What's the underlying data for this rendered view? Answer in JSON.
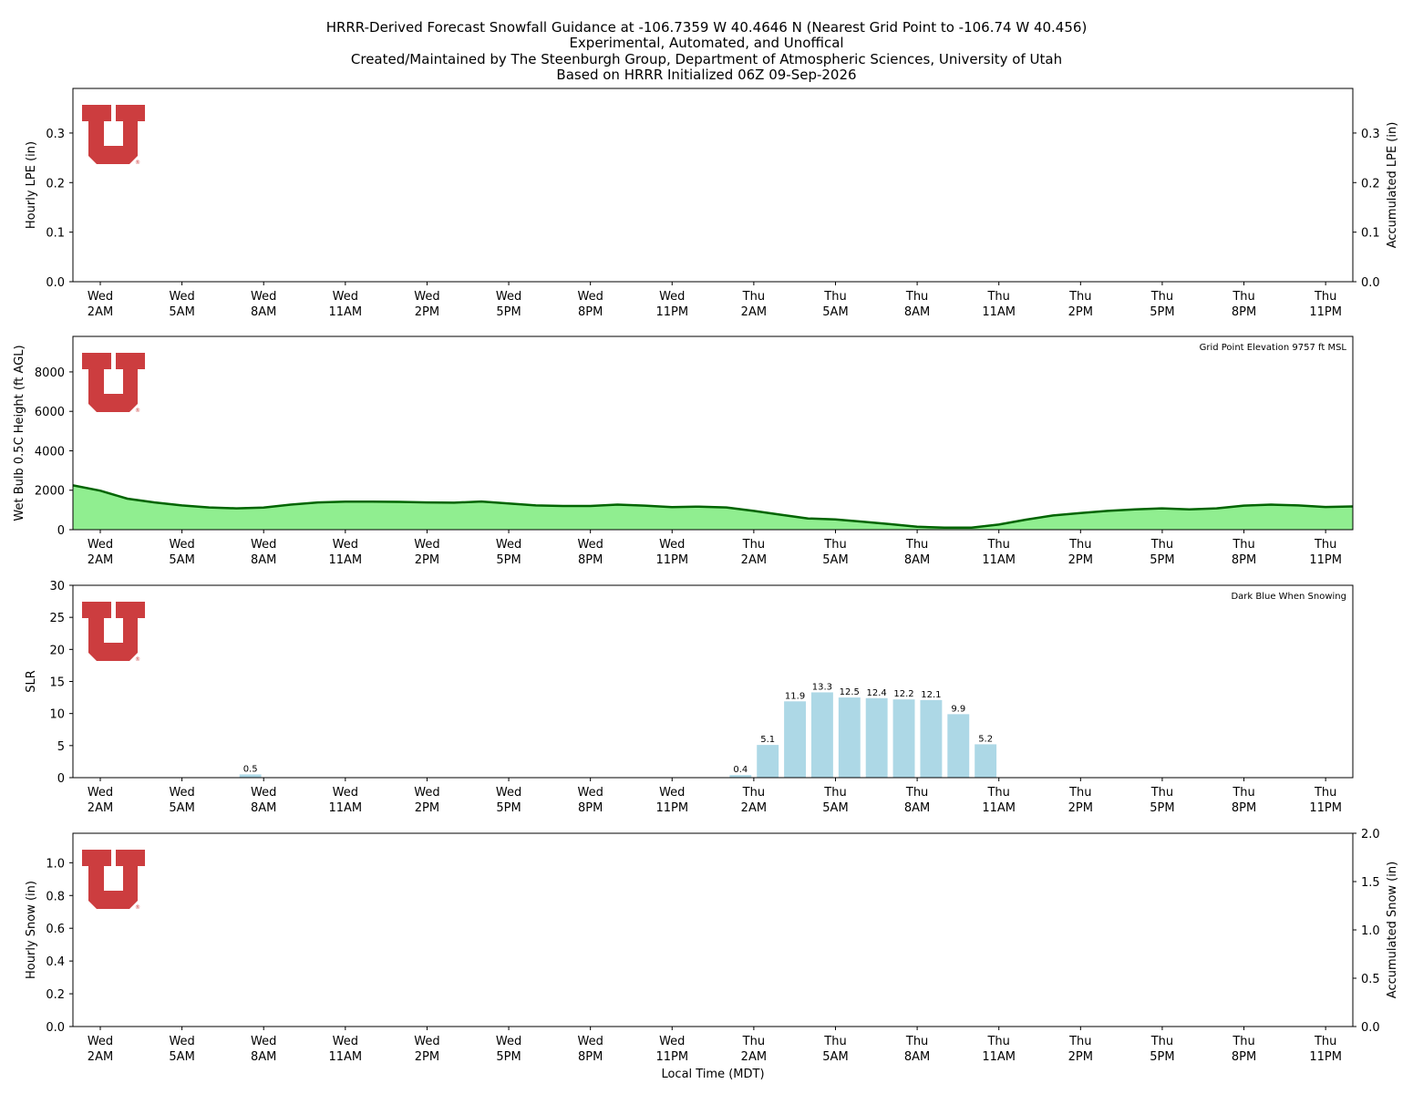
{
  "header": {
    "title_lines": [
      "HRRR-Derived Forecast Snowfall Guidance at -106.7359 W 40.4646 N (Nearest Grid Point to -106.74 W 40.456)",
      "Experimental, Automated, and Unoffical",
      "Created/Maintained by The Steenburgh Group, Department of Atmospheric Sciences, University of Utah",
      "Based on HRRR Initialized 06Z 09-Sep-2026"
    ]
  },
  "logo": {
    "letter": "U",
    "mark": "®",
    "color": "#cc3d3f"
  },
  "time_axis": {
    "label": "Local Time (MDT)",
    "ticks": [
      [
        "Wed",
        "2AM"
      ],
      [
        "Wed",
        "5AM"
      ],
      [
        "Wed",
        "8AM"
      ],
      [
        "Wed",
        "11AM"
      ],
      [
        "Wed",
        "2PM"
      ],
      [
        "Wed",
        "5PM"
      ],
      [
        "Wed",
        "8PM"
      ],
      [
        "Wed",
        "11PM"
      ],
      [
        "Thu",
        "2AM"
      ],
      [
        "Thu",
        "5AM"
      ],
      [
        "Thu",
        "8AM"
      ],
      [
        "Thu",
        "11AM"
      ],
      [
        "Thu",
        "2PM"
      ],
      [
        "Thu",
        "5PM"
      ],
      [
        "Thu",
        "8PM"
      ],
      [
        "Thu",
        "11PM"
      ]
    ]
  },
  "chart_data": [
    {
      "type": "bar",
      "ylabel": "Hourly LPE (in)",
      "y2label": "Accumulated LPE (in)",
      "ylim": [
        0,
        0.39
      ],
      "y2lim": [
        0,
        0.39
      ],
      "yticks": [
        "0.0",
        "0.1",
        "0.2",
        "0.3"
      ],
      "y2ticks": [
        "0.0",
        "0.1",
        "0.2",
        "0.3"
      ],
      "values": []
    },
    {
      "type": "area",
      "ylabel": "Wet Bulb 0.5C Height (ft AGL)",
      "annotation": "Grid Point Elevation 9757 ft MSL",
      "ylim": [
        0,
        9800
      ],
      "yticks": [
        "0",
        "2000",
        "4000",
        "6000",
        "8000"
      ],
      "fill_color": "#90ee90",
      "line_color": "#006400",
      "x_hours_from_wed_1am": [
        0,
        1,
        2,
        3,
        4,
        5,
        6,
        7,
        8,
        9,
        10,
        11,
        12,
        13,
        14,
        15,
        16,
        17,
        18,
        19,
        20,
        21,
        22,
        23,
        24,
        25,
        26,
        27,
        28,
        29,
        30,
        31,
        32,
        33,
        34,
        35,
        36,
        37,
        38,
        39,
        40,
        41,
        42,
        43,
        44,
        45,
        46,
        47
      ],
      "values": [
        2250,
        1980,
        1570,
        1380,
        1230,
        1130,
        1080,
        1120,
        1270,
        1380,
        1420,
        1420,
        1410,
        1380,
        1370,
        1430,
        1330,
        1230,
        1200,
        1200,
        1270,
        1220,
        1140,
        1170,
        1130,
        950,
        760,
        570,
        520,
        400,
        280,
        150,
        100,
        100,
        260,
        510,
        720,
        840,
        950,
        1030,
        1080,
        1030,
        1080,
        1220,
        1270,
        1230,
        1150,
        1180
      ]
    },
    {
      "type": "bar",
      "ylabel": "SLR",
      "annotation": "Dark Blue When Snowing",
      "ylim": [
        0,
        30
      ],
      "yticks": [
        "0",
        "5",
        "10",
        "15",
        "20",
        "25",
        "30"
      ],
      "bar_color": "#add8e6",
      "snowing_color": "#00008b",
      "bars": [
        {
          "hour": 6,
          "value": 0.5,
          "label": "0.5"
        },
        {
          "hour": 24,
          "value": 0.4,
          "label": "0.4"
        },
        {
          "hour": 25,
          "value": 5.1,
          "label": "5.1"
        },
        {
          "hour": 26,
          "value": 11.9,
          "label": "11.9"
        },
        {
          "hour": 27,
          "value": 13.3,
          "label": "13.3"
        },
        {
          "hour": 28,
          "value": 12.5,
          "label": "12.5"
        },
        {
          "hour": 29,
          "value": 12.4,
          "label": "12.4"
        },
        {
          "hour": 30,
          "value": 12.2,
          "label": "12.2"
        },
        {
          "hour": 31,
          "value": 12.1,
          "label": "12.1"
        },
        {
          "hour": 32,
          "value": 9.9,
          "label": "9.9"
        },
        {
          "hour": 33,
          "value": 5.2,
          "label": "5.2"
        }
      ]
    },
    {
      "type": "bar",
      "ylabel": "Hourly Snow (in)",
      "y2label": "Accumulated Snow (in)",
      "ylim": [
        0,
        1.18
      ],
      "y2lim": [
        0,
        2.0
      ],
      "yticks": [
        "0.0",
        "0.2",
        "0.4",
        "0.6",
        "0.8",
        "1.0"
      ],
      "y2ticks": [
        "0.0",
        "0.5",
        "1.0",
        "1.5",
        "2.0"
      ],
      "values": []
    }
  ]
}
